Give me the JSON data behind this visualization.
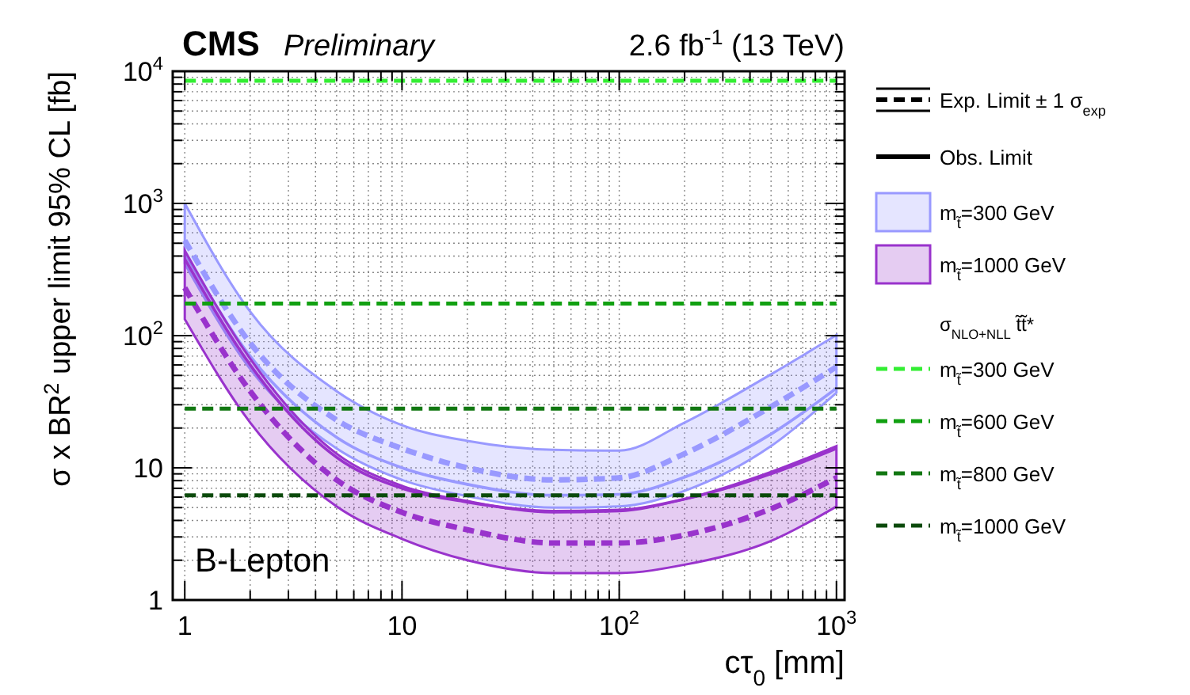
{
  "chart_data": {
    "type": "line",
    "title": "CMS",
    "subtitle": "Preliminary",
    "xlabel": "cτ$_{0}$ [mm]",
    "ylabel": "σ x BR$^{2}$ upper limit 95% CL [fb]",
    "annotations": [
      "2.6 fb$^{-1}$ (13 TeV)",
      "B-Lepton",
      "Exp. Limit ± 1 σ$_{exp}$",
      "Obs. Limit",
      "σ$_{NLO+NLL}$ t̃t̃*"
    ],
    "log": "xy",
    "grid": true,
    "legend": "right",
    "xlim": [
      0.88,
      1090
    ],
    "ylim": [
      1,
      10000
    ],
    "xticks": [
      1,
      {
        "value": 2,
        "label": null
      },
      {
        "value": 3,
        "label": null
      },
      {
        "value": 4,
        "label": null
      },
      {
        "value": 5,
        "label": null
      },
      {
        "value": 6,
        "label": null
      },
      {
        "value": 7,
        "label": null
      },
      {
        "value": 8,
        "label": null
      },
      {
        "value": 9,
        "label": null
      },
      10,
      {
        "value": 20,
        "label": null
      },
      {
        "value": 30,
        "label": null
      },
      {
        "value": 40,
        "label": null
      },
      {
        "value": 50,
        "label": null
      },
      {
        "value": 60,
        "label": null
      },
      {
        "value": 70,
        "label": null
      },
      {
        "value": 80,
        "label": null
      },
      {
        "value": 90,
        "label": null
      },
      {
        "value": 100,
        "label": "10$^{2}$"
      },
      {
        "value": 200,
        "label": null
      },
      {
        "value": 300,
        "label": null
      },
      {
        "value": 400,
        "label": null
      },
      {
        "value": 500,
        "label": null
      },
      {
        "value": 600,
        "label": null
      },
      {
        "value": 700,
        "label": null
      },
      {
        "value": 800,
        "label": null
      },
      {
        "value": 900,
        "label": null
      },
      {
        "value": 1000,
        "label": "10$^{3}$"
      }
    ],
    "yticks": [
      1,
      {
        "value": 2,
        "label": null
      },
      {
        "value": 3,
        "label": null
      },
      {
        "value": 4,
        "label": null
      },
      {
        "value": 5,
        "label": null
      },
      {
        "value": 6,
        "label": null
      },
      {
        "value": 7,
        "label": null
      },
      {
        "value": 8,
        "label": null
      },
      {
        "value": 9,
        "label": null
      },
      10,
      {
        "value": 20,
        "label": null
      },
      {
        "value": 30,
        "label": null
      },
      {
        "value": 40,
        "label": null
      },
      {
        "value": 50,
        "label": null
      },
      {
        "value": 60,
        "label": null
      },
      {
        "value": 70,
        "label": null
      },
      {
        "value": 80,
        "label": null
      },
      {
        "value": 90,
        "label": null
      },
      {
        "value": 100,
        "label": "10$^{2}$"
      },
      {
        "value": 200,
        "label": null
      },
      {
        "value": 300,
        "label": null
      },
      {
        "value": 400,
        "label": null
      },
      {
        "value": 500,
        "label": null
      },
      {
        "value": 600,
        "label": null
      },
      {
        "value": 700,
        "label": null
      },
      {
        "value": 800,
        "label": null
      },
      {
        "value": 900,
        "label": null
      },
      {
        "value": 1000,
        "label": "10$^{3}$"
      },
      {
        "value": 2000,
        "label": null
      },
      {
        "value": 3000,
        "label": null
      },
      {
        "value": 4000,
        "label": null
      },
      {
        "value": 5000,
        "label": null
      },
      {
        "value": 6000,
        "label": null
      },
      {
        "value": 7000,
        "label": null
      },
      {
        "value": 8000,
        "label": null
      },
      {
        "value": 9000,
        "label": null
      },
      {
        "value": 10000,
        "label": "10$^{4}$"
      }
    ],
    "x": [
      1,
      2,
      5,
      10,
      20,
      50,
      100,
      200,
      500,
      1000
    ],
    "series": [
      {
        "name": "m$_{t̃}$=300 GeV",
        "color": "#9999ff",
        "line_style": "dashed",
        "values": [
          525,
          88,
          23,
          14,
          10,
          8.1,
          8.4,
          12.8,
          29,
          58
        ],
        "lower": [
          350,
          56,
          14,
          8.1,
          6.1,
          5.0,
          5.1,
          6.7,
          14.6,
          37
        ],
        "upper": [
          1000,
          152,
          38,
          21,
          16,
          13.7,
          13.5,
          22,
          51,
          101
        ]
      },
      {
        "color": "#9999ff",
        "line_style": "solid",
        "values": [
          420,
          70,
          17,
          10,
          7.5,
          6.2,
          6.3,
          8.5,
          18,
          40
        ]
      },
      {
        "name": "m$_{t̃}$=1000 GeV",
        "color": "#9933cc",
        "line_style": "dashed",
        "values": [
          230,
          38,
          8.1,
          4.6,
          3.4,
          2.7,
          2.7,
          3.1,
          4.9,
          8.4
        ],
        "lower": [
          133,
          22,
          5.1,
          2.9,
          2.0,
          1.6,
          1.6,
          1.85,
          2.8,
          5.1
        ],
        "upper": [
          440,
          67,
          12.8,
          7.3,
          5.6,
          4.6,
          4.7,
          5.8,
          9.3,
          14.6
        ]
      },
      {
        "color": "#9933cc",
        "line_style": "solid",
        "values": [
          380,
          60,
          12,
          7,
          5.5,
          4.7,
          4.8,
          5.8,
          9,
          14
        ]
      },
      {
        "name": "m$_{t̃}$=300 GeV",
        "color": "#33ee33",
        "line_style": "dashed",
        "values": [
          8470,
          8470,
          8470,
          8470,
          8470,
          8470,
          8470,
          8470,
          8470,
          8470
        ]
      },
      {
        "name": "m$_{t̃}$=600 GeV",
        "color": "#11a011",
        "line_style": "dashed",
        "values": [
          175,
          175,
          175,
          175,
          175,
          175,
          175,
          175,
          175,
          175
        ]
      },
      {
        "name": "m$_{t̃}$=800 GeV",
        "color": "#117711",
        "line_style": "dashed",
        "values": [
          28,
          28,
          28,
          28,
          28,
          28,
          28,
          28,
          28,
          28
        ]
      },
      {
        "name": "m$_{t̃}$=1000 GeV",
        "color": "#0b4a0b",
        "line_style": "dashed",
        "values": [
          6.2,
          6.2,
          6.2,
          6.2,
          6.2,
          6.2,
          6.2,
          6.2,
          6.2,
          6.2
        ]
      }
    ]
  }
}
